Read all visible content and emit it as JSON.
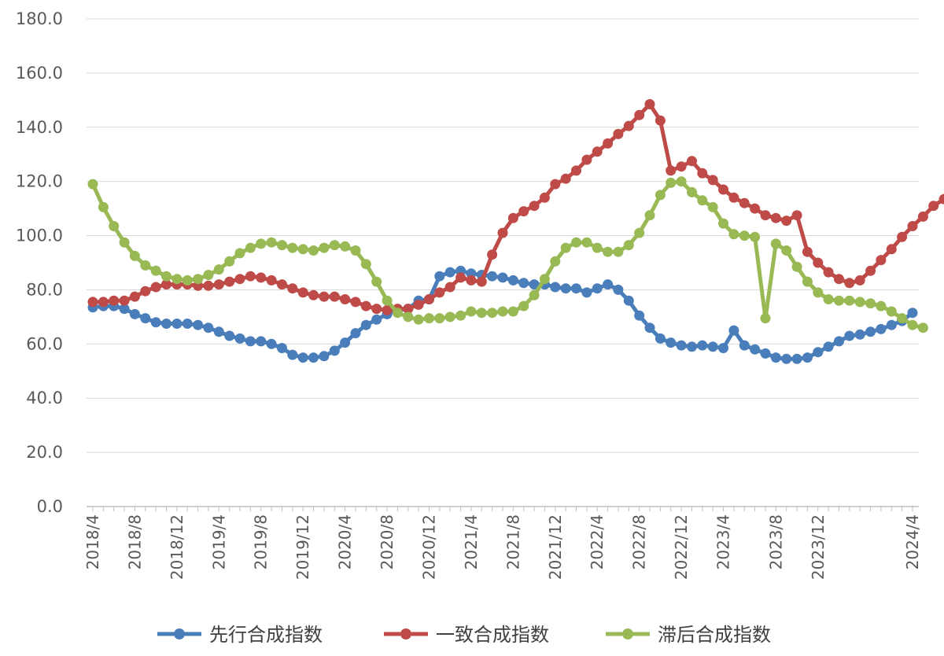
{
  "chart_data": {
    "type": "line",
    "yticks": [
      "0.0",
      "20.0",
      "40.0",
      "60.0",
      "80.0",
      "100.0",
      "120.0",
      "140.0",
      "160.0",
      "180.0"
    ],
    "ylim": [
      0,
      180
    ],
    "xticks": [
      "2018/4",
      "2018/8",
      "2018/12",
      "2019/4",
      "2019/8",
      "2019/12",
      "2020/4",
      "2020/8",
      "2020/12",
      "2021/4",
      "2021/8",
      "2021/12",
      "2022/4",
      "2022/8",
      "2022/12",
      "2023/4",
      "2023/8",
      "2023/12",
      "2024/4"
    ],
    "grid": true,
    "legend_position": "bottom",
    "series": [
      {
        "name": "先行合成指数",
        "color": "#4a7ebb",
        "values": [
          73.5,
          74,
          74,
          73,
          71,
          69.5,
          68,
          67.5,
          67.5,
          67.5,
          67,
          66,
          64.5,
          63,
          62,
          61,
          61,
          60,
          58.5,
          56,
          55,
          55,
          55.5,
          57.5,
          60.5,
          64,
          67,
          69,
          71,
          72.5,
          73,
          76,
          76.5,
          85,
          86.5,
          87,
          86,
          85.5,
          85,
          84.5,
          83.5,
          82.5,
          82,
          82,
          81,
          80.5,
          80.5,
          79,
          80.5,
          82,
          80,
          76,
          70.5,
          66,
          62,
          60.5,
          59.5,
          59,
          59.5,
          59,
          58.5,
          65,
          59.5,
          58,
          56.5,
          55,
          54.5,
          54.5,
          55,
          57,
          59,
          61,
          63,
          63.5,
          64.5,
          65.5,
          67,
          68.5,
          71.5
        ]
      },
      {
        "name": "一致合成指数",
        "color": "#be4b48",
        "values": [
          75.5,
          75.5,
          76,
          76,
          77.5,
          79.5,
          81,
          82,
          82,
          82,
          81.5,
          81.5,
          82,
          83,
          84,
          85,
          84.5,
          83.5,
          82,
          80.5,
          79,
          78,
          77.5,
          77.5,
          76.5,
          75.5,
          74,
          73,
          72.5,
          73,
          73,
          74.5,
          76.5,
          79,
          81,
          84.5,
          83.5,
          83,
          93,
          101,
          106.5,
          109,
          111,
          114,
          119,
          121,
          124,
          128,
          131,
          134,
          137.5,
          140.5,
          144.5,
          148.5,
          142.5,
          124,
          125.5,
          127.5,
          123,
          120.5,
          117,
          114,
          112,
          110,
          107.5,
          106.5,
          105.5,
          107.5,
          94,
          90,
          86.5,
          84,
          82.5,
          83.5,
          87,
          91,
          95,
          99.5,
          103.5,
          107,
          111,
          113.5
        ]
      },
      {
        "name": "滞后合成指数",
        "color": "#98b954",
        "values": [
          119,
          110.5,
          103.5,
          97.5,
          92.5,
          89,
          87,
          85,
          84,
          83.5,
          84,
          85.5,
          87.5,
          90.5,
          93.5,
          95.5,
          97,
          97.5,
          96.5,
          95.5,
          95,
          94.5,
          95.5,
          96.5,
          96,
          94.5,
          89.5,
          83,
          76,
          71.5,
          70,
          69,
          69.5,
          69.5,
          70,
          70.5,
          72,
          71.5,
          71.5,
          72,
          72,
          74,
          78,
          84,
          90.5,
          95.5,
          97.5,
          97.5,
          95.5,
          94,
          94,
          96.5,
          101,
          107.5,
          115,
          119.5,
          120,
          116,
          113,
          110.5,
          104.5,
          100.5,
          100,
          99.5,
          69.5,
          97,
          94.5,
          88.5,
          83,
          79,
          76.5,
          76,
          76,
          75.5,
          75,
          74,
          72,
          69.5,
          67,
          66
        ]
      }
    ]
  }
}
